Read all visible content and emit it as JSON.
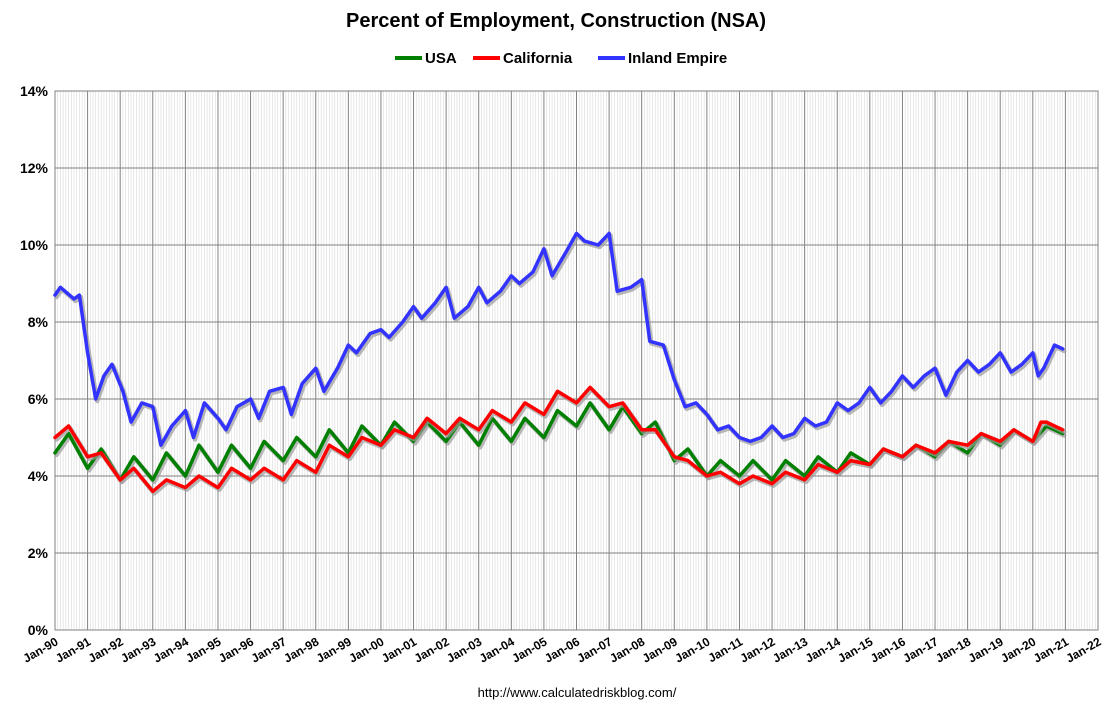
{
  "chart_data": {
    "type": "line",
    "title": "Percent of Employment, Construction (NSA)",
    "source": "http://www.calculatedriskblog.com/",
    "ylim": [
      0,
      14
    ],
    "y_ticks": [
      "0%",
      "2%",
      "4%",
      "6%",
      "8%",
      "10%",
      "12%",
      "14%"
    ],
    "xlim": [
      "1990-01",
      "2022-01"
    ],
    "x_ticks": [
      "Jan-90",
      "Jan-91",
      "Jan-92",
      "Jan-93",
      "Jan-94",
      "Jan-95",
      "Jan-96",
      "Jan-97",
      "Jan-98",
      "Jan-99",
      "Jan-00",
      "Jan-01",
      "Jan-02",
      "Jan-03",
      "Jan-04",
      "Jan-05",
      "Jan-06",
      "Jan-07",
      "Jan-08",
      "Jan-09",
      "Jan-10",
      "Jan-11",
      "Jan-12",
      "Jan-13",
      "Jan-14",
      "Jan-15",
      "Jan-16",
      "Jan-17",
      "Jan-18",
      "Jan-19",
      "Jan-20",
      "Jan-21",
      "Jan-22"
    ],
    "grid": true,
    "legend_position": "top",
    "series": [
      {
        "name": "USA",
        "color": "#008000",
        "x": [
          "1990-01",
          "1990-06",
          "1991-01",
          "1991-06",
          "1992-01",
          "1992-06",
          "1993-01",
          "1993-06",
          "1994-01",
          "1994-06",
          "1995-01",
          "1995-06",
          "1996-01",
          "1996-06",
          "1997-01",
          "1997-06",
          "1998-01",
          "1998-06",
          "1999-01",
          "1999-06",
          "2000-01",
          "2000-06",
          "2001-01",
          "2001-06",
          "2002-01",
          "2002-06",
          "2003-01",
          "2003-06",
          "2004-01",
          "2004-06",
          "2005-01",
          "2005-06",
          "2006-01",
          "2006-06",
          "2007-01",
          "2007-06",
          "2008-01",
          "2008-06",
          "2009-01",
          "2009-06",
          "2010-01",
          "2010-06",
          "2011-01",
          "2011-06",
          "2012-01",
          "2012-06",
          "2013-01",
          "2013-06",
          "2014-01",
          "2014-06",
          "2015-01",
          "2015-06",
          "2016-01",
          "2016-06",
          "2017-01",
          "2017-06",
          "2018-01",
          "2018-06",
          "2019-01",
          "2019-06",
          "2020-01",
          "2020-06",
          "2020-12"
        ],
        "values": [
          4.6,
          5.1,
          4.2,
          4.7,
          3.9,
          4.5,
          3.9,
          4.6,
          4.0,
          4.8,
          4.1,
          4.8,
          4.2,
          4.9,
          4.4,
          5.0,
          4.5,
          5.2,
          4.6,
          5.3,
          4.8,
          5.4,
          4.9,
          5.4,
          4.9,
          5.4,
          4.8,
          5.5,
          4.9,
          5.5,
          5.0,
          5.7,
          5.3,
          5.9,
          5.2,
          5.8,
          5.1,
          5.4,
          4.4,
          4.7,
          4.0,
          4.4,
          4.0,
          4.4,
          3.9,
          4.4,
          4.0,
          4.5,
          4.1,
          4.6,
          4.3,
          4.7,
          4.5,
          4.8,
          4.5,
          4.9,
          4.6,
          5.1,
          4.8,
          5.2,
          4.9,
          5.3,
          5.1
        ]
      },
      {
        "name": "California",
        "color": "#ff0000",
        "x": [
          "1990-01",
          "1990-06",
          "1991-01",
          "1991-06",
          "1992-01",
          "1992-06",
          "1993-01",
          "1993-06",
          "1994-01",
          "1994-06",
          "1995-01",
          "1995-06",
          "1996-01",
          "1996-06",
          "1997-01",
          "1997-06",
          "1998-01",
          "1998-06",
          "1999-01",
          "1999-06",
          "2000-01",
          "2000-06",
          "2001-01",
          "2001-06",
          "2002-01",
          "2002-06",
          "2003-01",
          "2003-06",
          "2004-01",
          "2004-06",
          "2005-01",
          "2005-06",
          "2006-01",
          "2006-06",
          "2007-01",
          "2007-06",
          "2008-01",
          "2008-06",
          "2009-01",
          "2009-06",
          "2010-01",
          "2010-06",
          "2011-01",
          "2011-06",
          "2012-01",
          "2012-06",
          "2013-01",
          "2013-06",
          "2014-01",
          "2014-06",
          "2015-01",
          "2015-06",
          "2016-01",
          "2016-06",
          "2017-01",
          "2017-06",
          "2018-01",
          "2018-06",
          "2019-01",
          "2019-06",
          "2020-01",
          "2020-04",
          "2020-06",
          "2020-12"
        ],
        "values": [
          5.0,
          5.3,
          4.5,
          4.6,
          3.9,
          4.2,
          3.6,
          3.9,
          3.7,
          4.0,
          3.7,
          4.2,
          3.9,
          4.2,
          3.9,
          4.4,
          4.1,
          4.8,
          4.5,
          5.0,
          4.8,
          5.2,
          5.0,
          5.5,
          5.1,
          5.5,
          5.2,
          5.7,
          5.4,
          5.9,
          5.6,
          6.2,
          5.9,
          6.3,
          5.8,
          5.9,
          5.2,
          5.2,
          4.5,
          4.4,
          4.0,
          4.1,
          3.8,
          4.0,
          3.8,
          4.1,
          3.9,
          4.3,
          4.1,
          4.4,
          4.3,
          4.7,
          4.5,
          4.8,
          4.6,
          4.9,
          4.8,
          5.1,
          4.9,
          5.2,
          4.9,
          5.4,
          5.4,
          5.2
        ]
      },
      {
        "name": "Inland Empire",
        "color": "#3333ff",
        "x": [
          "1990-01",
          "1990-03",
          "1990-08",
          "1990-10",
          "1991-01",
          "1991-04",
          "1991-07",
          "1991-10",
          "1992-02",
          "1992-05",
          "1992-09",
          "1993-01",
          "1993-04",
          "1993-08",
          "1994-01",
          "1994-04",
          "1994-08",
          "1995-01",
          "1995-04",
          "1995-08",
          "1996-01",
          "1996-04",
          "1996-08",
          "1997-01",
          "1997-04",
          "1997-08",
          "1998-01",
          "1998-04",
          "1998-09",
          "1999-01",
          "1999-04",
          "1999-09",
          "2000-01",
          "2000-04",
          "2000-09",
          "2001-01",
          "2001-04",
          "2001-09",
          "2002-01",
          "2002-04",
          "2002-09",
          "2003-01",
          "2003-04",
          "2003-09",
          "2004-01",
          "2004-04",
          "2004-09",
          "2005-01",
          "2005-04",
          "2005-09",
          "2006-01",
          "2006-04",
          "2006-09",
          "2007-01",
          "2007-04",
          "2007-09",
          "2008-01",
          "2008-04",
          "2008-09",
          "2009-01",
          "2009-05",
          "2009-09",
          "2010-01",
          "2010-05",
          "2010-09",
          "2011-01",
          "2011-05",
          "2011-09",
          "2012-01",
          "2012-05",
          "2012-09",
          "2013-01",
          "2013-05",
          "2013-09",
          "2014-01",
          "2014-05",
          "2014-09",
          "2015-01",
          "2015-05",
          "2015-09",
          "2016-01",
          "2016-05",
          "2016-09",
          "2017-01",
          "2017-05",
          "2017-09",
          "2018-01",
          "2018-05",
          "2018-09",
          "2019-01",
          "2019-05",
          "2019-09",
          "2020-01",
          "2020-03",
          "2020-05",
          "2020-09",
          "2020-12"
        ],
        "values": [
          8.7,
          8.9,
          8.6,
          8.7,
          7.2,
          6.0,
          6.6,
          6.9,
          6.2,
          5.4,
          5.9,
          5.8,
          4.8,
          5.3,
          5.7,
          5.0,
          5.9,
          5.5,
          5.2,
          5.8,
          6.0,
          5.5,
          6.2,
          6.3,
          5.6,
          6.4,
          6.8,
          6.2,
          6.8,
          7.4,
          7.2,
          7.7,
          7.8,
          7.6,
          8.0,
          8.4,
          8.1,
          8.5,
          8.9,
          8.1,
          8.4,
          8.9,
          8.5,
          8.8,
          9.2,
          9.0,
          9.3,
          9.9,
          9.2,
          9.8,
          10.3,
          10.1,
          10.0,
          10.3,
          8.8,
          8.9,
          9.1,
          7.5,
          7.4,
          6.5,
          5.8,
          5.9,
          5.6,
          5.2,
          5.3,
          5.0,
          4.9,
          5.0,
          5.3,
          5.0,
          5.1,
          5.5,
          5.3,
          5.4,
          5.9,
          5.7,
          5.9,
          6.3,
          5.9,
          6.2,
          6.6,
          6.3,
          6.6,
          6.8,
          6.1,
          6.7,
          7.0,
          6.7,
          6.9,
          7.2,
          6.7,
          6.9,
          7.2,
          6.6,
          6.8,
          7.4,
          7.3
        ]
      }
    ]
  }
}
